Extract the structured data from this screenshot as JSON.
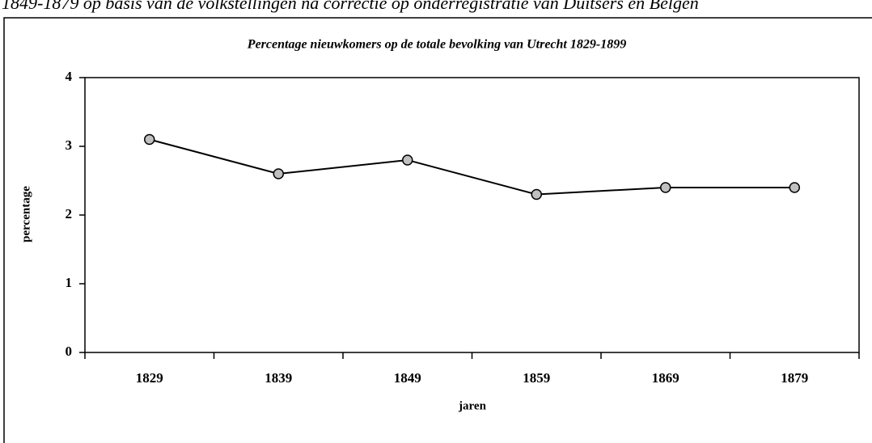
{
  "caption": "1849-1879 op basis van de volkstellingen na correctie op onderregistratie van Duitsers en Belgen",
  "chart_data": {
    "type": "line",
    "title": "Percentage nieuwkomers op de totale bevolking van Utrecht 1829-1899",
    "x_label": "jaren",
    "y_label": "percentage",
    "categories": [
      "1829",
      "1839",
      "1849",
      "1859",
      "1869",
      "1879"
    ],
    "series": [
      {
        "name": "percentage",
        "color": "#000000",
        "marker_fill": "#c0c0c0",
        "values": [
          3.1,
          2.6,
          2.8,
          2.3,
          2.4,
          2.4
        ]
      }
    ],
    "ylim": [
      0,
      4
    ],
    "yticks": [
      0,
      1,
      2,
      3,
      4
    ],
    "grid": false
  }
}
